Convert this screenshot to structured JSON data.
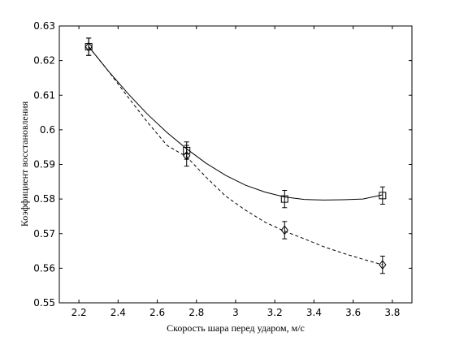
{
  "chart_data": {
    "type": "scatter",
    "title": "",
    "xlabel": "Скорость шара перед ударом, м/с",
    "ylabel": "Коэффициент восстановления",
    "xlim": [
      2.1,
      3.9
    ],
    "ylim": [
      0.55,
      0.63
    ],
    "xticks": [
      2.2,
      2.4,
      2.6,
      2.8,
      3,
      3.2,
      3.4,
      3.6,
      3.8
    ],
    "xtick_labels": [
      "2.2",
      "2.4",
      "2.6",
      "2.8",
      "3",
      "3.2",
      "3.4",
      "3.6",
      "3.8"
    ],
    "yticks": [
      0.55,
      0.56,
      0.57,
      0.58,
      0.59,
      0.6,
      0.61,
      0.62,
      0.63
    ],
    "ytick_labels": [
      "0.55",
      "0.56",
      "0.57",
      "0.58",
      "0.59",
      "0.6",
      "0.61",
      "0.62",
      "0.63"
    ],
    "grid": false,
    "series": [
      {
        "marker": "square",
        "line": "solid",
        "points": [
          {
            "x": 2.25,
            "y": 0.624,
            "err": 0.0025
          },
          {
            "x": 2.75,
            "y": 0.594,
            "err": 0.0025
          },
          {
            "x": 3.25,
            "y": 0.58,
            "err": 0.0025
          },
          {
            "x": 3.75,
            "y": 0.581,
            "err": 0.0025
          }
        ],
        "fit": [
          [
            2.25,
            0.624
          ],
          [
            2.35,
            0.617
          ],
          [
            2.45,
            0.6105
          ],
          [
            2.55,
            0.6045
          ],
          [
            2.65,
            0.5992
          ],
          [
            2.75,
            0.5945
          ],
          [
            2.85,
            0.5903
          ],
          [
            2.95,
            0.5868
          ],
          [
            3.05,
            0.584
          ],
          [
            3.15,
            0.582
          ],
          [
            3.25,
            0.5806
          ],
          [
            3.35,
            0.5799
          ],
          [
            3.45,
            0.5797
          ],
          [
            3.55,
            0.5798
          ],
          [
            3.65,
            0.58
          ],
          [
            3.75,
            0.5812
          ]
        ]
      },
      {
        "marker": "diamond",
        "line": "dashed",
        "points": [
          {
            "x": 2.25,
            "y": 0.624,
            "err": 0.0025
          },
          {
            "x": 2.75,
            "y": 0.5925,
            "err": 0.003
          },
          {
            "x": 3.25,
            "y": 0.571,
            "err": 0.0025
          },
          {
            "x": 3.75,
            "y": 0.561,
            "err": 0.0025
          }
        ],
        "fit": [
          [
            2.25,
            0.624
          ],
          [
            2.35,
            0.617
          ],
          [
            2.45,
            0.6095
          ],
          [
            2.55,
            0.6022
          ],
          [
            2.65,
            0.5955
          ],
          [
            2.75,
            0.5922
          ],
          [
            2.85,
            0.5863
          ],
          [
            2.95,
            0.5808
          ],
          [
            3.05,
            0.5768
          ],
          [
            3.15,
            0.5733
          ],
          [
            3.25,
            0.5707
          ],
          [
            3.35,
            0.5685
          ],
          [
            3.45,
            0.5662
          ],
          [
            3.55,
            0.5643
          ],
          [
            3.65,
            0.5626
          ],
          [
            3.75,
            0.561
          ]
        ]
      }
    ]
  }
}
